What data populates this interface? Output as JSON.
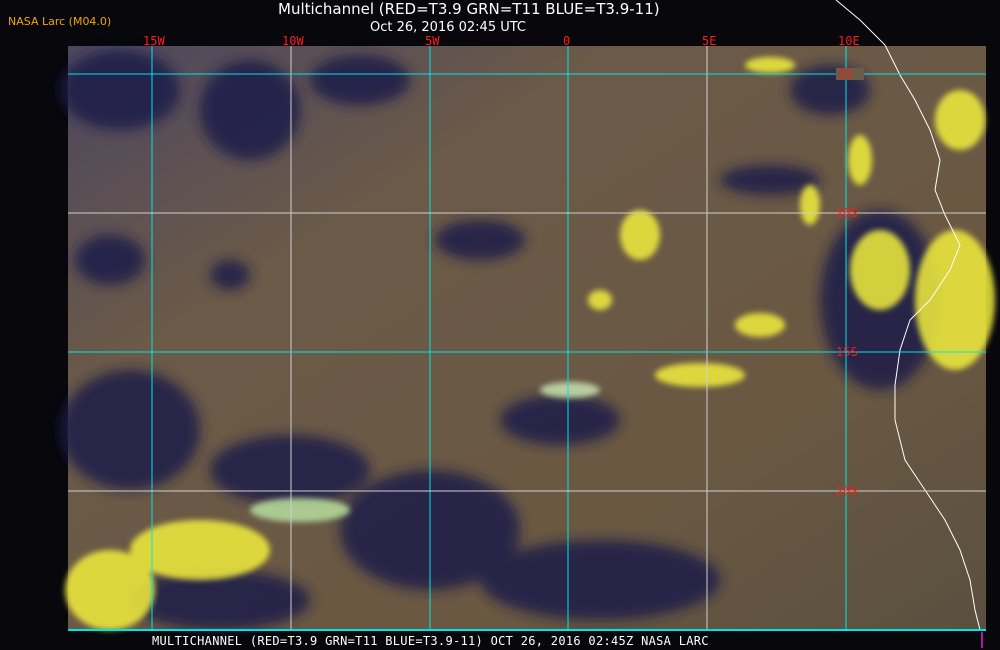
{
  "header": {
    "credit": "NASA Larc (M04.0)",
    "title": "Multichannel (RED=T3.9 GRN=T11 BLUE=T3.9-11)",
    "subtitle": "Oct 26, 2016 02:45 UTC"
  },
  "map": {
    "longitude_labels": [
      "15W",
      "10W",
      "5W",
      "0",
      "5E",
      "10E"
    ],
    "latitude_labels": [
      "5S",
      "10S",
      "15S",
      "20S"
    ],
    "colors": {
      "grid_primary": "#00e5e5",
      "grid_secondary": "#d0d0d0",
      "labels": "#ff1a1a",
      "land_surface": "#6b5a44",
      "low_cloud": "#f2ee3c",
      "high_cloud": "#1c1f4a",
      "coastline": "#ffffff"
    }
  },
  "footer": {
    "caption": "MULTICHANNEL (RED=T3.9 GRN=T11 BLUE=T3.9-11) OCT 26, 2016 02:45Z   NASA LARC"
  }
}
